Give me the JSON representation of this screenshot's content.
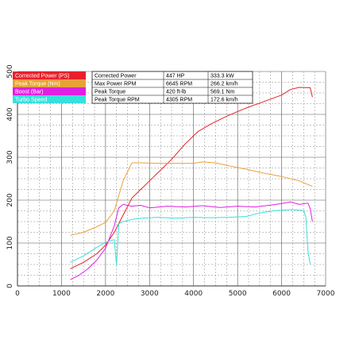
{
  "chart_data": {
    "type": "line",
    "xlim": [
      0,
      7000
    ],
    "ylim": [
      0,
      500
    ],
    "x_ticks": [
      "0",
      "1000",
      "2000",
      "3000",
      "4000",
      "5000",
      "6000",
      "7000"
    ],
    "y_ticks": [
      "0",
      "100",
      "200",
      "300",
      "400",
      "500"
    ],
    "grid": true,
    "legend_position": "top-left",
    "series": [
      {
        "name": "Corrected Power (PS)",
        "color": "#e8202a",
        "points": [
          [
            1200,
            40
          ],
          [
            1500,
            55
          ],
          [
            1800,
            75
          ],
          [
            2000,
            95
          ],
          [
            2200,
            125
          ],
          [
            2400,
            165
          ],
          [
            2600,
            205
          ],
          [
            2800,
            225
          ],
          [
            3000,
            245
          ],
          [
            3200,
            265
          ],
          [
            3500,
            295
          ],
          [
            3800,
            330
          ],
          [
            4100,
            360
          ],
          [
            4400,
            378
          ],
          [
            4800,
            398
          ],
          [
            5200,
            415
          ],
          [
            5600,
            430
          ],
          [
            6000,
            445
          ],
          [
            6200,
            458
          ],
          [
            6400,
            463
          ],
          [
            6650,
            462
          ],
          [
            6700,
            440
          ]
        ]
      },
      {
        "name": "Peak Torque (Nm)",
        "color": "#e8a23a",
        "points": [
          [
            1200,
            118
          ],
          [
            1500,
            125
          ],
          [
            1800,
            138
          ],
          [
            2000,
            148
          ],
          [
            2200,
            175
          ],
          [
            2400,
            245
          ],
          [
            2600,
            287
          ],
          [
            2800,
            287
          ],
          [
            3200,
            286
          ],
          [
            3600,
            286
          ],
          [
            4000,
            286
          ],
          [
            4200,
            289
          ],
          [
            4500,
            287
          ],
          [
            4800,
            280
          ],
          [
            5200,
            272
          ],
          [
            5600,
            263
          ],
          [
            6000,
            255
          ],
          [
            6400,
            245
          ],
          [
            6700,
            232
          ]
        ]
      },
      {
        "name": "Boost (Bar)",
        "color": "#e020e0",
        "points": [
          [
            1200,
            15
          ],
          [
            1400,
            25
          ],
          [
            1600,
            40
          ],
          [
            1800,
            60
          ],
          [
            2000,
            88
          ],
          [
            2200,
            140
          ],
          [
            2300,
            182
          ],
          [
            2400,
            190
          ],
          [
            2600,
            186
          ],
          [
            2800,
            188
          ],
          [
            3000,
            182
          ],
          [
            3400,
            186
          ],
          [
            3800,
            184
          ],
          [
            4200,
            187
          ],
          [
            4600,
            183
          ],
          [
            5000,
            186
          ],
          [
            5400,
            184
          ],
          [
            5800,
            189
          ],
          [
            6000,
            192
          ],
          [
            6200,
            196
          ],
          [
            6400,
            190
          ],
          [
            6600,
            193
          ],
          [
            6650,
            180
          ],
          [
            6700,
            150
          ]
        ]
      },
      {
        "name": "Turbo Speed",
        "color": "#38e0dc",
        "points": [
          [
            1200,
            55
          ],
          [
            1500,
            70
          ],
          [
            1800,
            90
          ],
          [
            2000,
            102
          ],
          [
            2200,
            108
          ],
          [
            2250,
            48
          ],
          [
            2300,
            145
          ],
          [
            2400,
            150
          ],
          [
            2600,
            155
          ],
          [
            2800,
            158
          ],
          [
            3200,
            160
          ],
          [
            3600,
            158
          ],
          [
            4000,
            160
          ],
          [
            4400,
            159
          ],
          [
            4800,
            160
          ],
          [
            5200,
            162
          ],
          [
            5500,
            170
          ],
          [
            5800,
            175
          ],
          [
            6200,
            178
          ],
          [
            6500,
            176
          ],
          [
            6550,
            160
          ],
          [
            6600,
            80
          ],
          [
            6650,
            50
          ]
        ]
      }
    ],
    "table": [
      [
        "Corrected Power",
        "447 HP",
        "333.3 kW"
      ],
      [
        "Max Power RPM",
        "6645 RPM",
        "266.2 km/h"
      ],
      [
        "Peak Torque",
        "420 ft-lb",
        "569.1 Nm"
      ],
      [
        "Peak Torque RPM",
        "4305 RPM",
        "172.6 km/h"
      ]
    ]
  }
}
